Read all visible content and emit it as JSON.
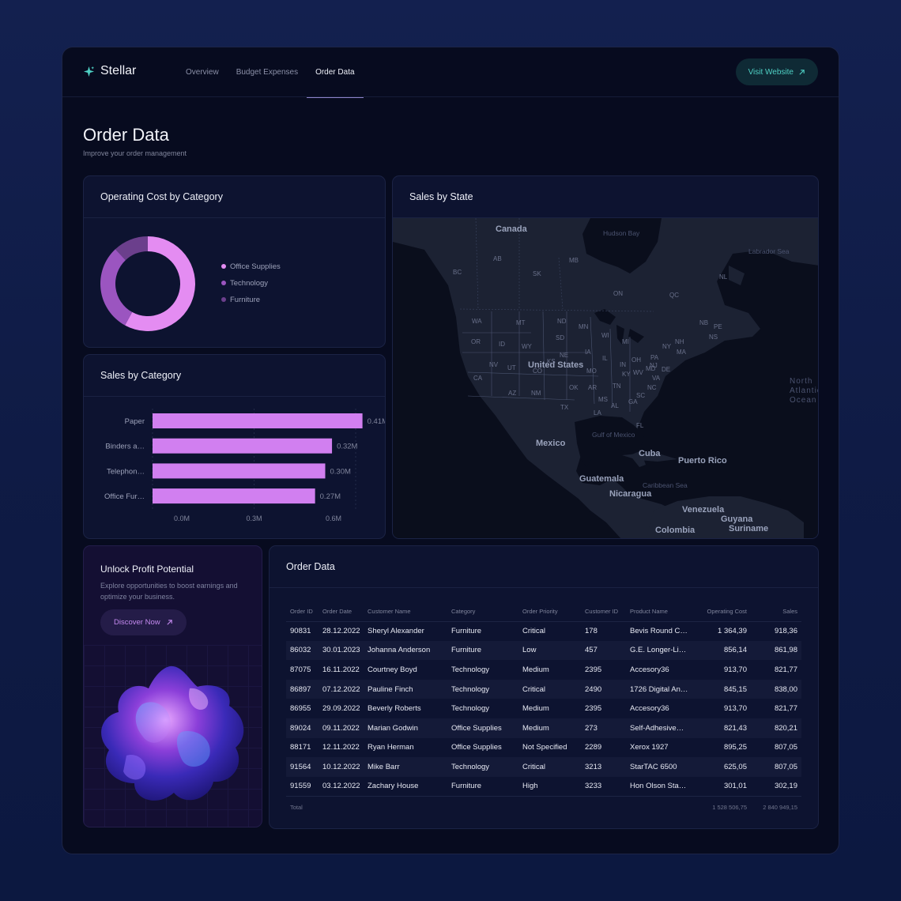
{
  "app": {
    "name": "Stellar"
  },
  "nav": {
    "items": [
      "Overview",
      "Budget Expenses",
      "Order Data"
    ],
    "active": "Order Data"
  },
  "header": {
    "visit_label": "Visit Website"
  },
  "page": {
    "title": "Order Data",
    "subtitle": "Improve your order management"
  },
  "operating_cost": {
    "title": "Operating Cost by Category",
    "legend": [
      {
        "label": "Office Supplies",
        "color": "#e48cf2"
      },
      {
        "label": "Technology",
        "color": "#9b55c0"
      },
      {
        "label": "Furniture",
        "color": "#6b3f8c"
      }
    ]
  },
  "sales_by_category": {
    "title": "Sales by Category"
  },
  "sales_by_state": {
    "title": "Sales by State",
    "labels": {
      "countries": [
        "Canada",
        "United States",
        "Mexico",
        "Cuba",
        "Puerto Rico",
        "Guatemala",
        "Nicaragua",
        "Venezuela",
        "Colombia",
        "Guyana",
        "Suriname"
      ],
      "waters": [
        "Hudson Bay",
        "Labrador Sea",
        "Gulf of Mexico",
        "Caribbean Sea",
        "North Atlantic Ocean"
      ],
      "regions": [
        "AB",
        "BC",
        "SK",
        "MB",
        "ON",
        "QC",
        "NL",
        "NB",
        "PE",
        "NS",
        "WA",
        "MT",
        "ND",
        "MN",
        "OR",
        "ID",
        "WY",
        "SD",
        "WI",
        "MI",
        "NY",
        "NH",
        "MA",
        "NV",
        "UT",
        "NE",
        "IA",
        "IL",
        "IN",
        "OH",
        "PA",
        "NJ",
        "MD",
        "DE",
        "CA",
        "CO",
        "KS",
        "MO",
        "KY",
        "WV",
        "VA",
        "AZ",
        "NM",
        "OK",
        "AR",
        "TN",
        "NC",
        "TX",
        "MS",
        "AL",
        "GA",
        "SC",
        "LA",
        "FL"
      ]
    }
  },
  "promo": {
    "title": "Unlock Profit Potential",
    "text": "Explore opportunities to boost earnings and optimize your business.",
    "button_label": "Discover Now"
  },
  "order_table": {
    "title": "Order Data",
    "columns": [
      "Order ID",
      "Order Date",
      "Customer Name",
      "Category",
      "Order Priority",
      "Customer ID",
      "Product Name",
      "Operating Cost",
      "Sales"
    ],
    "rows": [
      [
        "90831",
        "28.12.2022",
        "Sheryl Alexander",
        "Furniture",
        "Critical",
        "178",
        "Bevis Round C…",
        "1 364,39",
        "918,36"
      ],
      [
        "86032",
        "30.01.2023",
        "Johanna Anderson",
        "Furniture",
        "Low",
        "457",
        "G.E. Longer-Li…",
        "856,14",
        "861,98"
      ],
      [
        "87075",
        "16.11.2022",
        "Courtney Boyd",
        "Technology",
        "Medium",
        "2395",
        "Accesory36",
        "913,70",
        "821,77"
      ],
      [
        "86897",
        "07.12.2022",
        "Pauline Finch",
        "Technology",
        "Critical",
        "2490",
        "1726 Digital An…",
        "845,15",
        "838,00"
      ],
      [
        "86955",
        "29.09.2022",
        "Beverly Roberts",
        "Technology",
        "Medium",
        "2395",
        "Accesory36",
        "913,70",
        "821,77"
      ],
      [
        "89024",
        "09.11.2022",
        "Marian Godwin",
        "Office Supplies",
        "Medium",
        "273",
        "Self-Adhesive…",
        "821,43",
        "820,21"
      ],
      [
        "88171",
        "12.11.2022",
        "Ryan Herman",
        "Office Supplies",
        "Not Specified",
        "2289",
        "Xerox 1927",
        "895,25",
        "807,05"
      ],
      [
        "91564",
        "10.12.2022",
        "Mike Barr",
        "Technology",
        "Critical",
        "3213",
        "StarTAC 6500",
        "625,05",
        "807,05"
      ],
      [
        "91559",
        "03.12.2022",
        "Zachary House",
        "Furniture",
        "High",
        "3233",
        "Hon Olson Sta…",
        "301,01",
        "302,19"
      ]
    ],
    "total_label": "Total",
    "total_operating_cost": "1 528 506,75",
    "total_sales": "2 840 949,15"
  },
  "chart_data": [
    {
      "type": "pie",
      "variant": "donut",
      "categories": [
        "Office Supplies",
        "Technology",
        "Furniture"
      ],
      "values": [
        0.58,
        0.3,
        0.12
      ],
      "colors": [
        "#e48cf2",
        "#9b55c0",
        "#6b3f8c"
      ]
    },
    {
      "type": "bar",
      "orientation": "horizontal",
      "categories": [
        "Paper",
        "Binders a…",
        "Telephon…",
        "Office Fur…"
      ],
      "values": [
        0.41,
        0.32,
        0.3,
        0.27
      ],
      "value_labels": [
        "0.41M",
        "0.32M",
        "0.30M",
        "0.27M"
      ],
      "xticks": [
        "0.0M",
        "0.3M",
        "0.6M"
      ],
      "xlim": [
        0,
        0.6
      ],
      "color": "#d17ff0"
    }
  ]
}
